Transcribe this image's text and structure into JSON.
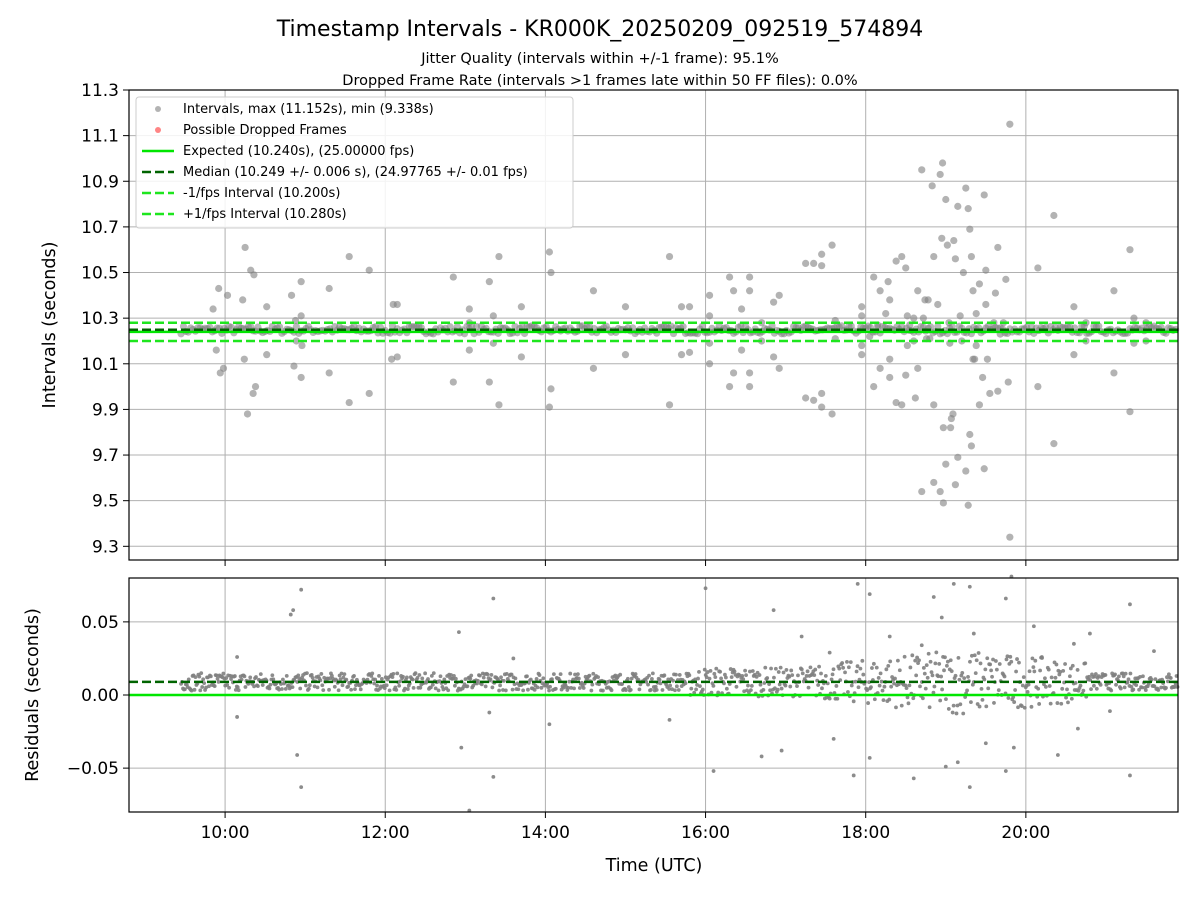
{
  "title": "Timestamp Intervals - KR000K_20250209_092519_574894",
  "subtitle_1": "Jitter Quality (intervals within +/-1 frame): 95.1%",
  "subtitle_2": "Dropped Frame Rate (intervals >1 frames late within 50 FF files): 0.0%",
  "colors": {
    "points": "#808080",
    "dropped": "#ff6666",
    "expected": "#00e600",
    "median": "#006400",
    "interval": "#1ee61e",
    "grid": "#b0b0b0"
  },
  "chart_data": [
    {
      "type": "scatter",
      "name": "intervals",
      "ylabel": "Intervals (seconds)",
      "ylim": [
        9.24,
        11.3
      ],
      "yticks": [
        "9.3",
        "9.5",
        "9.7",
        "9.9",
        "10.1",
        "10.3",
        "10.5",
        "10.7",
        "10.9",
        "11.1",
        "11.3"
      ],
      "xlim": [
        8.8,
        21.9
      ],
      "grid": true,
      "legend_placement": "top-left",
      "legend": [
        "Intervals, max (11.152s), min (9.338s)",
        "Possible Dropped Frames",
        "Expected (10.240s), (25.00000 fps)",
        "Median (10.249 +/- 0.006 s), (24.97765 +/- 0.01 fps)",
        "-1/fps Interval (10.200s)",
        "+1/fps Interval (10.280s)"
      ],
      "lines": {
        "expected": 10.24,
        "median": 10.249,
        "minus_one_fps": 10.2,
        "plus_one_fps": 10.28
      },
      "series": [
        {
          "name": "Intervals",
          "points": [
            [
              9.85,
              10.34
            ],
            [
              9.92,
              10.43
            ],
            [
              9.98,
              10.08
            ],
            [
              9.89,
              10.16
            ],
            [
              10.03,
              10.4
            ],
            [
              9.94,
              10.06
            ],
            [
              10.22,
              10.38
            ],
            [
              10.25,
              10.61
            ],
            [
              10.28,
              9.88
            ],
            [
              10.32,
              10.51
            ],
            [
              10.36,
              10.49
            ],
            [
              10.24,
              10.12
            ],
            [
              10.35,
              9.97
            ],
            [
              10.38,
              10.0
            ],
            [
              10.52,
              10.14
            ],
            [
              10.52,
              10.35
            ],
            [
              10.83,
              10.4
            ],
            [
              10.86,
              10.09
            ],
            [
              10.88,
              10.29
            ],
            [
              10.89,
              10.2
            ],
            [
              10.95,
              10.31
            ],
            [
              10.96,
              10.18
            ],
            [
              10.95,
              10.46
            ],
            [
              10.95,
              10.04
            ],
            [
              11.3,
              10.43
            ],
            [
              11.3,
              10.06
            ],
            [
              11.55,
              10.57
            ],
            [
              11.55,
              9.93
            ],
            [
              11.8,
              10.51
            ],
            [
              11.8,
              9.97
            ],
            [
              12.1,
              10.36
            ],
            [
              12.15,
              10.36
            ],
            [
              12.08,
              10.12
            ],
            [
              12.15,
              10.13
            ],
            [
              12.85,
              10.48
            ],
            [
              12.85,
              10.02
            ],
            [
              13.05,
              10.34
            ],
            [
              13.05,
              10.16
            ],
            [
              13.05,
              10.28
            ],
            [
              13.3,
              10.46
            ],
            [
              13.3,
              10.02
            ],
            [
              13.35,
              10.31
            ],
            [
              13.35,
              10.19
            ],
            [
              13.42,
              10.57
            ],
            [
              13.42,
              9.92
            ],
            [
              13.7,
              10.35
            ],
            [
              13.7,
              10.13
            ],
            [
              14.05,
              10.59
            ],
            [
              14.07,
              10.5
            ],
            [
              14.05,
              9.91
            ],
            [
              14.07,
              9.99
            ],
            [
              14.6,
              10.42
            ],
            [
              14.6,
              10.08
            ],
            [
              15.0,
              10.35
            ],
            [
              15.0,
              10.14
            ],
            [
              15.55,
              10.57
            ],
            [
              15.55,
              9.92
            ],
            [
              15.7,
              10.35
            ],
            [
              15.7,
              10.14
            ],
            [
              15.8,
              10.35
            ],
            [
              15.8,
              10.15
            ],
            [
              16.05,
              10.4
            ],
            [
              16.05,
              10.1
            ],
            [
              16.05,
              10.31
            ],
            [
              16.05,
              10.19
            ],
            [
              16.3,
              10.48
            ],
            [
              16.3,
              10.0
            ],
            [
              16.35,
              10.42
            ],
            [
              16.35,
              10.06
            ],
            [
              16.45,
              10.34
            ],
            [
              16.45,
              10.16
            ],
            [
              16.55,
              10.48
            ],
            [
              16.55,
              10.42
            ],
            [
              16.55,
              10.06
            ],
            [
              16.55,
              10.0
            ],
            [
              16.7,
              10.28
            ],
            [
              16.7,
              10.2
            ],
            [
              16.85,
              10.37
            ],
            [
              16.85,
              10.13
            ],
            [
              16.92,
              10.4
            ],
            [
              16.92,
              10.08
            ],
            [
              17.25,
              10.54
            ],
            [
              17.25,
              9.95
            ],
            [
              17.35,
              10.54
            ],
            [
              17.35,
              9.94
            ],
            [
              17.45,
              10.58
            ],
            [
              17.45,
              10.53
            ],
            [
              17.45,
              9.97
            ],
            [
              17.45,
              9.91
            ],
            [
              17.58,
              10.62
            ],
            [
              17.58,
              9.88
            ],
            [
              17.62,
              10.29
            ],
            [
              17.62,
              10.21
            ],
            [
              17.95,
              10.35
            ],
            [
              17.95,
              10.31
            ],
            [
              17.95,
              10.18
            ],
            [
              17.95,
              10.14
            ],
            [
              18.05,
              10.22
            ],
            [
              18.1,
              10.48
            ],
            [
              18.1,
              10.0
            ],
            [
              18.15,
              10.27
            ],
            [
              18.18,
              10.42
            ],
            [
              18.18,
              10.08
            ],
            [
              18.25,
              10.32
            ],
            [
              18.28,
              10.46
            ],
            [
              18.3,
              10.38
            ],
            [
              18.3,
              10.12
            ],
            [
              18.3,
              10.04
            ],
            [
              18.38,
              10.55
            ],
            [
              18.38,
              9.93
            ],
            [
              18.45,
              10.57
            ],
            [
              18.45,
              9.92
            ],
            [
              18.5,
              10.52
            ],
            [
              18.5,
              10.05
            ],
            [
              18.52,
              10.31
            ],
            [
              18.52,
              10.18
            ],
            [
              18.55,
              10.27
            ],
            [
              18.6,
              10.3
            ],
            [
              18.6,
              10.2
            ],
            [
              18.62,
              9.95
            ],
            [
              18.65,
              10.42
            ],
            [
              18.65,
              10.08
            ],
            [
              18.7,
              10.95
            ],
            [
              18.7,
              9.54
            ],
            [
              18.72,
              10.3
            ],
            [
              18.74,
              10.38
            ],
            [
              18.76,
              10.21
            ],
            [
              18.78,
              10.38
            ],
            [
              18.8,
              10.21
            ],
            [
              18.83,
              10.88
            ],
            [
              18.85,
              10.57
            ],
            [
              18.85,
              9.58
            ],
            [
              18.85,
              9.92
            ],
            [
              18.9,
              10.36
            ],
            [
              18.93,
              10.93
            ],
            [
              18.93,
              9.54
            ],
            [
              18.95,
              10.65
            ],
            [
              18.96,
              10.98
            ],
            [
              18.97,
              9.82
            ],
            [
              18.97,
              9.49
            ],
            [
              19.0,
              10.82
            ],
            [
              19.0,
              9.66
            ],
            [
              19.02,
              10.62
            ],
            [
              19.04,
              10.28
            ],
            [
              19.05,
              10.19
            ],
            [
              19.06,
              9.82
            ],
            [
              19.07,
              9.86
            ],
            [
              19.09,
              9.88
            ],
            [
              19.1,
              10.64
            ],
            [
              19.12,
              10.56
            ],
            [
              19.12,
              9.57
            ],
            [
              19.15,
              10.79
            ],
            [
              19.15,
              9.69
            ],
            [
              19.18,
              10.31
            ],
            [
              19.2,
              10.2
            ],
            [
              19.22,
              10.5
            ],
            [
              19.25,
              10.87
            ],
            [
              19.25,
              9.63
            ],
            [
              19.28,
              10.78
            ],
            [
              19.28,
              9.48
            ],
            [
              19.3,
              10.69
            ],
            [
              19.3,
              9.79
            ],
            [
              19.32,
              10.57
            ],
            [
              19.32,
              9.74
            ],
            [
              19.34,
              10.42
            ],
            [
              19.34,
              10.12
            ],
            [
              19.36,
              10.12
            ],
            [
              19.38,
              10.32
            ],
            [
              19.38,
              10.18
            ],
            [
              19.42,
              10.45
            ],
            [
              19.42,
              9.92
            ],
            [
              19.46,
              10.04
            ],
            [
              19.48,
              10.84
            ],
            [
              19.48,
              9.64
            ],
            [
              19.5,
              10.36
            ],
            [
              19.5,
              10.51
            ],
            [
              19.52,
              10.12
            ],
            [
              19.55,
              9.97
            ],
            [
              19.6,
              10.28
            ],
            [
              19.62,
              10.41
            ],
            [
              19.65,
              10.61
            ],
            [
              19.65,
              9.98
            ],
            [
              19.68,
              10.23
            ],
            [
              19.72,
              10.28
            ],
            [
              19.75,
              10.47
            ],
            [
              19.78,
              10.02
            ],
            [
              19.8,
              11.15
            ],
            [
              19.8,
              9.34
            ],
            [
              20.15,
              10.52
            ],
            [
              20.15,
              10.0
            ],
            [
              20.35,
              10.75
            ],
            [
              20.35,
              9.75
            ],
            [
              20.6,
              10.35
            ],
            [
              20.6,
              10.14
            ],
            [
              20.75,
              10.28
            ],
            [
              20.75,
              10.2
            ],
            [
              21.1,
              10.42
            ],
            [
              21.1,
              10.06
            ],
            [
              21.3,
              10.6
            ],
            [
              21.3,
              9.89
            ],
            [
              21.35,
              10.3
            ],
            [
              21.35,
              10.19
            ],
            [
              21.5,
              10.28
            ],
            [
              21.5,
              10.2
            ]
          ]
        }
      ]
    },
    {
      "type": "scatter",
      "name": "residuals",
      "xlabel": "Time (UTC)",
      "ylabel": "Residuals (seconds)",
      "ylim": [
        -0.08,
        0.08
      ],
      "yticks": [
        "−0.05",
        "0.00",
        "0.05"
      ],
      "xlim": [
        8.8,
        21.9
      ],
      "xticks": [
        "10:00",
        "12:00",
        "14:00",
        "16:00",
        "18:00",
        "20:00"
      ],
      "grid": true,
      "lines": {
        "expected": 0.0,
        "median": 0.009
      },
      "band_hours": [
        9.45,
        21.9
      ],
      "band_center_residual": 0.009,
      "outliers": [
        [
          10.15,
          0.026
        ],
        [
          10.15,
          -0.015
        ],
        [
          10.82,
          0.055
        ],
        [
          10.85,
          0.058
        ],
        [
          10.95,
          0.072
        ],
        [
          10.9,
          -0.041
        ],
        [
          10.95,
          -0.063
        ],
        [
          12.92,
          0.043
        ],
        [
          12.95,
          -0.036
        ],
        [
          13.35,
          0.066
        ],
        [
          13.35,
          -0.056
        ],
        [
          13.6,
          0.025
        ],
        [
          13.3,
          -0.012
        ],
        [
          15.55,
          -0.017
        ],
        [
          16.0,
          0.073
        ],
        [
          16.1,
          -0.052
        ],
        [
          16.7,
          -0.042
        ],
        [
          16.85,
          0.058
        ],
        [
          16.95,
          -0.038
        ],
        [
          17.55,
          0.029
        ],
        [
          17.6,
          -0.03
        ],
        [
          17.85,
          -0.055
        ],
        [
          17.9,
          0.076
        ],
        [
          18.05,
          0.069
        ],
        [
          18.05,
          -0.043
        ],
        [
          18.6,
          -0.057
        ],
        [
          18.7,
          0.034
        ],
        [
          18.85,
          0.067
        ],
        [
          18.95,
          0.053
        ],
        [
          19.0,
          -0.049
        ],
        [
          19.1,
          0.076
        ],
        [
          19.15,
          -0.046
        ],
        [
          19.3,
          0.074
        ],
        [
          19.3,
          -0.063
        ],
        [
          19.35,
          0.042
        ],
        [
          19.5,
          -0.033
        ],
        [
          19.75,
          -0.052
        ],
        [
          19.75,
          0.066
        ],
        [
          19.82,
          0.081
        ],
        [
          19.85,
          -0.036
        ],
        [
          20.1,
          0.047
        ],
        [
          20.2,
          0.026
        ],
        [
          20.4,
          -0.041
        ],
        [
          20.6,
          0.035
        ],
        [
          20.65,
          -0.023
        ],
        [
          20.8,
          0.042
        ],
        [
          21.05,
          -0.011
        ],
        [
          21.3,
          0.062
        ],
        [
          21.3,
          -0.055
        ],
        [
          21.6,
          0.03
        ],
        [
          13.05,
          -0.079
        ],
        [
          14.05,
          -0.02
        ],
        [
          17.2,
          0.04
        ],
        [
          18.3,
          0.04
        ]
      ]
    }
  ]
}
